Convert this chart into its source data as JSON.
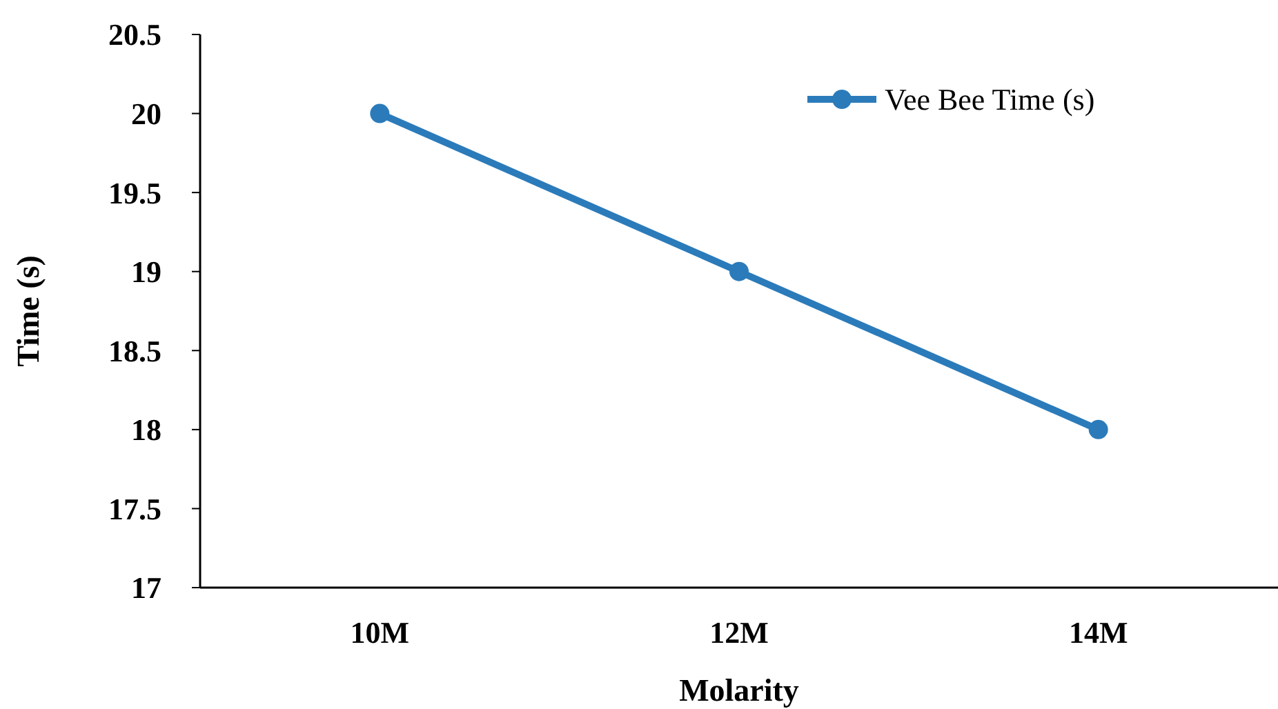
{
  "chart_data": {
    "type": "line",
    "xlabel": "Molarity",
    "ylabel": "Time (s)",
    "categories": [
      "10M",
      "12M",
      "14M"
    ],
    "series": [
      {
        "name": "Vee Bee Time (s)",
        "color": "#2b7bba",
        "values": [
          20,
          19,
          18
        ]
      }
    ],
    "ylim": [
      17,
      20.5
    ],
    "yticks": [
      17,
      17.5,
      18,
      18.5,
      19,
      19.5,
      20,
      20.5
    ],
    "grid": false,
    "legend": "top right",
    "marker": "circle",
    "line_style": "solid"
  }
}
